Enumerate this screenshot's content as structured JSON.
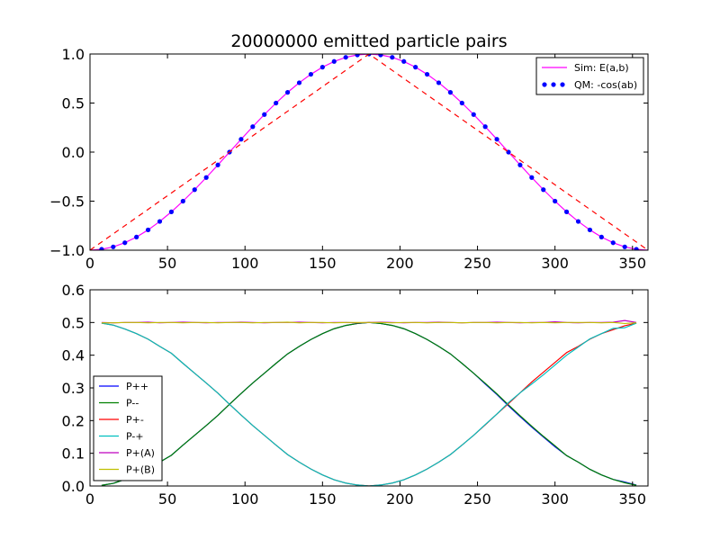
{
  "chart_data": [
    {
      "type": "line",
      "title": "20000000 emitted particle pairs",
      "xlabel": "",
      "ylabel": "",
      "xlim": [
        0,
        360
      ],
      "ylim": [
        -1.0,
        1.0
      ],
      "xticks": [
        0,
        50,
        100,
        150,
        200,
        250,
        300,
        350
      ],
      "xtick_labels": [
        "0",
        "50",
        "100",
        "150",
        "200",
        "250",
        "300",
        "350"
      ],
      "yticks": [
        -1.0,
        -0.5,
        0.0,
        0.5,
        1.0
      ],
      "ytick_labels": [
        "−1.0",
        "−0.5",
        "0.0",
        "0.5",
        "1.0"
      ],
      "grid": false,
      "legend_position": "top-right",
      "x": [
        0,
        7.5,
        15,
        22.5,
        30,
        37.5,
        45,
        52.5,
        60,
        67.5,
        75,
        82.5,
        90,
        97.5,
        105,
        112.5,
        120,
        127.5,
        135,
        142.5,
        150,
        157.5,
        165,
        172.5,
        180,
        187.5,
        195,
        202.5,
        210,
        217.5,
        225,
        232.5,
        240,
        247.5,
        255,
        262.5,
        270,
        277.5,
        285,
        292.5,
        300,
        307.5,
        315,
        322.5,
        330,
        337.5,
        345,
        352.5,
        360
      ],
      "series": [
        {
          "name": "Sim: E(a,b)",
          "style": "solid",
          "color": "#ff00ff",
          "in_legend": true,
          "values": [
            -1.0,
            -0.991,
            -0.966,
            -0.924,
            -0.866,
            -0.793,
            -0.707,
            -0.609,
            -0.5,
            -0.383,
            -0.259,
            -0.131,
            0.0,
            0.131,
            0.259,
            0.383,
            0.5,
            0.609,
            0.707,
            0.793,
            0.866,
            0.924,
            0.966,
            0.991,
            1.0,
            0.991,
            0.966,
            0.924,
            0.866,
            0.793,
            0.707,
            0.609,
            0.5,
            0.383,
            0.259,
            0.131,
            0.0,
            -0.131,
            -0.259,
            -0.383,
            -0.5,
            -0.609,
            -0.707,
            -0.793,
            -0.866,
            -0.924,
            -0.966,
            -0.991,
            -1.0
          ]
        },
        {
          "name": "QM: -cos(ab)",
          "style": "dots",
          "color": "#0000ff",
          "in_legend": true,
          "x": [
            7.5,
            15,
            22.5,
            30,
            37.5,
            45,
            52.5,
            60,
            67.5,
            75,
            82.5,
            90,
            97.5,
            105,
            112.5,
            120,
            127.5,
            135,
            142.5,
            150,
            157.5,
            165,
            172.5,
            180,
            187.5,
            195,
            202.5,
            210,
            217.5,
            225,
            232.5,
            240,
            247.5,
            255,
            262.5,
            270,
            277.5,
            285,
            292.5,
            300,
            307.5,
            315,
            322.5,
            330,
            337.5,
            345,
            352.5
          ],
          "values": [
            -0.991,
            -0.966,
            -0.924,
            -0.866,
            -0.793,
            -0.707,
            -0.609,
            -0.5,
            -0.383,
            -0.259,
            -0.131,
            0.0,
            0.131,
            0.259,
            0.383,
            0.5,
            0.609,
            0.707,
            0.793,
            0.866,
            0.924,
            0.966,
            0.991,
            1.0,
            0.991,
            0.966,
            0.924,
            0.866,
            0.793,
            0.707,
            0.609,
            0.5,
            0.383,
            0.259,
            0.131,
            0.0,
            -0.131,
            -0.259,
            -0.383,
            -0.5,
            -0.609,
            -0.707,
            -0.793,
            -0.866,
            -0.924,
            -0.966,
            -0.991
          ]
        },
        {
          "name": "",
          "style": "dashed",
          "color": "#ff0000",
          "in_legend": false,
          "x": [
            0,
            180,
            360
          ],
          "values": [
            -1.0,
            1.0,
            -1.0
          ]
        }
      ]
    },
    {
      "type": "line",
      "title": "",
      "xlabel": "",
      "ylabel": "",
      "xlim": [
        0,
        360
      ],
      "ylim": [
        0.0,
        0.6
      ],
      "xticks": [
        0,
        50,
        100,
        150,
        200,
        250,
        300,
        350
      ],
      "xtick_labels": [
        "0",
        "50",
        "100",
        "150",
        "200",
        "250",
        "300",
        "350"
      ],
      "yticks": [
        0.0,
        0.1,
        0.2,
        0.3,
        0.4,
        0.5,
        0.6
      ],
      "ytick_labels": [
        "0.0",
        "0.1",
        "0.2",
        "0.3",
        "0.4",
        "0.5",
        "0.6"
      ],
      "grid": false,
      "legend_position": "lower-left",
      "x": [
        7.5,
        15,
        22.5,
        30,
        37.5,
        45,
        52.5,
        60,
        67.5,
        75,
        82.5,
        90,
        97.5,
        105,
        112.5,
        120,
        127.5,
        135,
        142.5,
        150,
        157.5,
        165,
        172.5,
        180,
        187.5,
        195,
        202.5,
        210,
        217.5,
        225,
        232.5,
        240,
        247.5,
        255,
        262.5,
        270,
        277.5,
        285,
        292.5,
        300,
        307.5,
        315,
        322.5,
        330,
        337.5,
        345,
        352.5
      ],
      "series": [
        {
          "name": "P++",
          "color": "#0000ff",
          "values": [
            0.002,
            0.008,
            0.02,
            0.034,
            0.051,
            0.073,
            0.094,
            0.125,
            0.155,
            0.185,
            0.216,
            0.25,
            0.283,
            0.315,
            0.345,
            0.375,
            0.404,
            0.427,
            0.448,
            0.466,
            0.481,
            0.491,
            0.497,
            0.5,
            0.497,
            0.491,
            0.481,
            0.466,
            0.448,
            0.427,
            0.404,
            0.375,
            0.345,
            0.312,
            0.28,
            0.245,
            0.212,
            0.18,
            0.15,
            0.12,
            0.093,
            0.073,
            0.051,
            0.034,
            0.02,
            0.012,
            0.003
          ]
        },
        {
          "name": "P--",
          "color": "#008000",
          "values": [
            0.002,
            0.008,
            0.02,
            0.034,
            0.051,
            0.073,
            0.094,
            0.125,
            0.155,
            0.185,
            0.216,
            0.25,
            0.283,
            0.315,
            0.345,
            0.375,
            0.404,
            0.427,
            0.448,
            0.466,
            0.481,
            0.491,
            0.497,
            0.5,
            0.497,
            0.491,
            0.481,
            0.466,
            0.448,
            0.427,
            0.404,
            0.375,
            0.345,
            0.314,
            0.282,
            0.248,
            0.215,
            0.183,
            0.152,
            0.123,
            0.093,
            0.073,
            0.051,
            0.034,
            0.02,
            0.01,
            0.002
          ]
        },
        {
          "name": "P+-",
          "color": "#ff0000",
          "values": [
            0.498,
            0.492,
            0.48,
            0.466,
            0.449,
            0.427,
            0.406,
            0.375,
            0.345,
            0.315,
            0.284,
            0.25,
            0.217,
            0.185,
            0.155,
            0.125,
            0.096,
            0.073,
            0.052,
            0.034,
            0.019,
            0.009,
            0.003,
            0.0,
            0.003,
            0.009,
            0.019,
            0.034,
            0.052,
            0.073,
            0.096,
            0.125,
            0.155,
            0.187,
            0.22,
            0.252,
            0.285,
            0.318,
            0.348,
            0.378,
            0.408,
            0.427,
            0.449,
            0.466,
            0.478,
            0.49,
            0.498
          ]
        },
        {
          "name": "P-+",
          "color": "#00bfbf",
          "values": [
            0.498,
            0.492,
            0.48,
            0.466,
            0.449,
            0.427,
            0.406,
            0.375,
            0.345,
            0.315,
            0.284,
            0.25,
            0.217,
            0.185,
            0.155,
            0.125,
            0.096,
            0.073,
            0.052,
            0.034,
            0.019,
            0.009,
            0.003,
            0.0,
            0.003,
            0.009,
            0.019,
            0.034,
            0.052,
            0.073,
            0.096,
            0.125,
            0.155,
            0.188,
            0.22,
            0.255,
            0.285,
            0.312,
            0.34,
            0.37,
            0.4,
            0.425,
            0.45,
            0.466,
            0.482,
            0.484,
            0.498
          ]
        },
        {
          "name": "P+(A)",
          "color": "#bf00bf",
          "values": [
            0.5,
            0.499,
            0.5,
            0.5,
            0.501,
            0.499,
            0.5,
            0.501,
            0.5,
            0.499,
            0.5,
            0.5,
            0.501,
            0.5,
            0.499,
            0.5,
            0.5,
            0.501,
            0.5,
            0.499,
            0.5,
            0.5,
            0.499,
            0.5,
            0.501,
            0.5,
            0.499,
            0.5,
            0.5,
            0.501,
            0.5,
            0.499,
            0.5,
            0.5,
            0.501,
            0.5,
            0.499,
            0.5,
            0.5,
            0.502,
            0.5,
            0.499,
            0.5,
            0.5,
            0.501,
            0.506,
            0.5
          ]
        },
        {
          "name": "P+(B)",
          "color": "#bfbf00",
          "values": [
            0.499,
            0.499,
            0.5,
            0.5,
            0.499,
            0.5,
            0.5,
            0.499,
            0.5,
            0.5,
            0.499,
            0.5,
            0.5,
            0.499,
            0.5,
            0.5,
            0.501,
            0.499,
            0.5,
            0.5,
            0.499,
            0.5,
            0.5,
            0.5,
            0.5,
            0.499,
            0.5,
            0.5,
            0.499,
            0.5,
            0.5,
            0.499,
            0.5,
            0.5,
            0.499,
            0.5,
            0.5,
            0.499,
            0.5,
            0.499,
            0.5,
            0.5,
            0.5,
            0.499,
            0.5,
            0.497,
            0.499
          ]
        }
      ]
    }
  ]
}
